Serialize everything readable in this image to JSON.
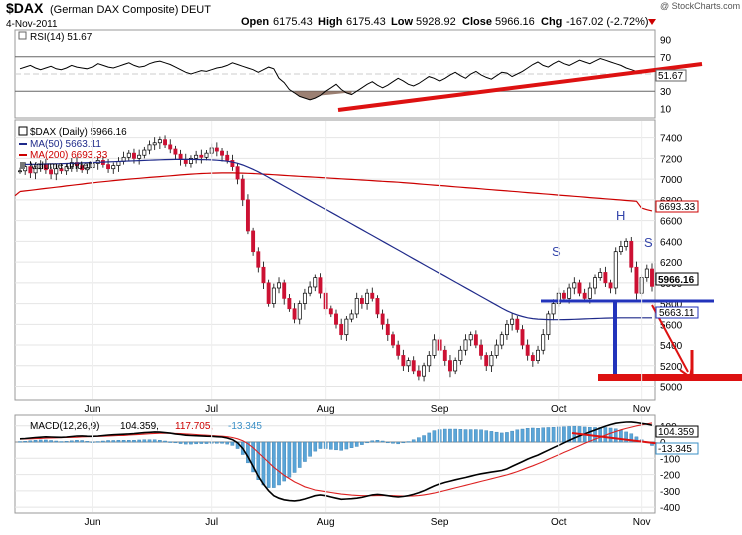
{
  "header": {
    "symbol": "$DAX",
    "name": "(German DAX Composite)",
    "exchange": "DEUT",
    "date": "4-Nov-2011",
    "open_label": "Open",
    "open": "6175.43",
    "high_label": "High",
    "high": "6175.43",
    "low_label": "Low",
    "low": "5928.92",
    "close_label": "Close",
    "close": "5966.16",
    "chg_label": "Chg",
    "chg": "-167.02 (-2.72%)",
    "watermark": "@ StockCharts.com"
  },
  "rsi": {
    "legend": "RSI(14) 51.67",
    "last_value": "51.67",
    "ticks": [
      90,
      70,
      50,
      30,
      10
    ],
    "ylim": [
      0,
      100
    ],
    "values": [
      56,
      58,
      60,
      57,
      55,
      57,
      59,
      56,
      55,
      57,
      60,
      58,
      57,
      56,
      58,
      62,
      60,
      58,
      57,
      59,
      61,
      63,
      60,
      58,
      59,
      62,
      64,
      65,
      63,
      61,
      58,
      55,
      52,
      50,
      52,
      54,
      53,
      55,
      57,
      58,
      60,
      63,
      61,
      59,
      57,
      55,
      52,
      55,
      58,
      56,
      45,
      40,
      32,
      28,
      24,
      22,
      20,
      22,
      25,
      30,
      34,
      38,
      32,
      28,
      26,
      30,
      34,
      38,
      41,
      37,
      34,
      37,
      41,
      45,
      42,
      38,
      36,
      39,
      43,
      47,
      45,
      42,
      45,
      49,
      52,
      48,
      45,
      50,
      53,
      49,
      46,
      44,
      48,
      52,
      51,
      47,
      50,
      53,
      57,
      61,
      64,
      60,
      58,
      62,
      65,
      62,
      60,
      63,
      66,
      64,
      62,
      65,
      68,
      66,
      64,
      62,
      60,
      57,
      55,
      53,
      51.67
    ]
  },
  "price": {
    "legend_symbol": "$DAX (Daily) 5966.16",
    "legend_ma50": "MA(50) 5663.11",
    "legend_ma200": "MA(200) 6693.33",
    "legend_volume": "Volume undef",
    "ticks": [
      7400,
      7200,
      7000,
      6800,
      6600,
      6400,
      6200,
      6000,
      5800,
      5600,
      5400,
      5200,
      5000
    ],
    "ylim": [
      4880,
      7560
    ],
    "label_close": "5966.16",
    "label_ma200": "6693.33",
    "label_ma50": "5663.11",
    "closes": [
      7080,
      7120,
      7060,
      7100,
      7140,
      7090,
      7050,
      7100,
      7080,
      7120,
      7160,
      7130,
      7090,
      7110,
      7150,
      7180,
      7140,
      7100,
      7130,
      7170,
      7210,
      7250,
      7200,
      7230,
      7280,
      7330,
      7350,
      7380,
      7330,
      7290,
      7240,
      7190,
      7150,
      7200,
      7230,
      7210,
      7250,
      7300,
      7270,
      7230,
      7180,
      7120,
      7000,
      6800,
      6500,
      6300,
      6150,
      6000,
      5800,
      5950,
      6000,
      5850,
      5750,
      5650,
      5800,
      5900,
      5960,
      6050,
      5900,
      5750,
      5700,
      5600,
      5500,
      5650,
      5700,
      5850,
      5800,
      5900,
      5850,
      5700,
      5600,
      5500,
      5400,
      5300,
      5200,
      5250,
      5150,
      5100,
      5200,
      5300,
      5450,
      5350,
      5250,
      5150,
      5250,
      5350,
      5450,
      5500,
      5400,
      5300,
      5200,
      5300,
      5400,
      5500,
      5600,
      5650,
      5550,
      5400,
      5300,
      5250,
      5350,
      5500,
      5700,
      5800,
      5900,
      5850,
      5950,
      6000,
      5900,
      5850,
      5950,
      6050,
      6100,
      6000,
      5950,
      6300,
      6350,
      6400,
      6150,
      5900,
      6050,
      6133,
      5966.16
    ],
    "ma50": [
      7140,
      7141,
      7142,
      7143,
      7144,
      7145,
      7146,
      7147,
      7148,
      7150,
      7152,
      7154,
      7156,
      7158,
      7160,
      7162,
      7164,
      7166,
      7168,
      7170,
      7172,
      7174,
      7176,
      7178,
      7180,
      7182,
      7184,
      7186,
      7188,
      7189,
      7190,
      7190,
      7190,
      7190,
      7189,
      7188,
      7187,
      7185,
      7182,
      7178,
      7172,
      7164,
      7152,
      7136,
      7116,
      7094,
      7070,
      7044,
      7016,
      6988,
      6960,
      6932,
      6904,
      6876,
      6848,
      6820,
      6792,
      6764,
      6736,
      6708,
      6680,
      6652,
      6624,
      6596,
      6568,
      6540,
      6512,
      6484,
      6456,
      6428,
      6400,
      6372,
      6344,
      6316,
      6288,
      6260,
      6232,
      6204,
      6176,
      6148,
      6120,
      6092,
      6064,
      6036,
      6008,
      5980,
      5952,
      5924,
      5896,
      5868,
      5840,
      5812,
      5784,
      5756,
      5730,
      5708,
      5690,
      5675,
      5663,
      5655,
      5650,
      5647,
      5645,
      5644,
      5644,
      5645,
      5646,
      5648,
      5650,
      5652,
      5654,
      5656,
      5658,
      5660,
      5661,
      5662,
      5663,
      5663,
      5663,
      5663,
      5663,
      5663,
      5663.11
    ],
    "ma200": [
      6880,
      6886,
      6892,
      6898,
      6904,
      6910,
      6916,
      6922,
      6928,
      6934,
      6940,
      6946,
      6952,
      6958,
      6964,
      6970,
      6975,
      6980,
      6985,
      6990,
      6995,
      7000,
      7004,
      7008,
      7012,
      7016,
      7020,
      7024,
      7028,
      7032,
      7036,
      7040,
      7044,
      7048,
      7051,
      7054,
      7056,
      7058,
      7059,
      7060,
      7060,
      7060,
      7059,
      7058,
      7056,
      7054,
      7051,
      7048,
      7045,
      7042,
      7039,
      7036,
      7033,
      7030,
      7027,
      7024,
      7021,
      7018,
      7015,
      7012,
      7009,
      7006,
      7003,
      7000,
      6997,
      6994,
      6991,
      6988,
      6985,
      6982,
      6979,
      6976,
      6973,
      6970,
      6966,
      6962,
      6958,
      6954,
      6950,
      6946,
      6942,
      6938,
      6934,
      6930,
      6926,
      6922,
      6918,
      6914,
      6910,
      6906,
      6902,
      6898,
      6894,
      6890,
      6886,
      6882,
      6878,
      6874,
      6870,
      6866,
      6862,
      6858,
      6854,
      6850,
      6846,
      6842,
      6838,
      6834,
      6830,
      6826,
      6822,
      6818,
      6814,
      6810,
      6806,
      6802,
      6798,
      6794,
      6790,
      6786,
      6720,
      6705,
      6693.33
    ],
    "pattern_labels": {
      "left_shoulder": "S",
      "head": "H",
      "right_shoulder": "S"
    }
  },
  "macd": {
    "legend_name": "MACD(12,26,9)",
    "legend_macd": "104.359,",
    "legend_signal": "117.705,",
    "legend_hist": "-13.345",
    "label_macd": "104.359",
    "label_hist": "-13.345",
    "ticks": [
      100,
      0,
      -100,
      -200,
      -300,
      -400
    ],
    "ylim": [
      -430,
      160
    ],
    "macd": [
      20,
      22,
      25,
      28,
      30,
      32,
      31,
      30,
      29,
      31,
      34,
      37,
      38,
      36,
      35,
      37,
      40,
      43,
      45,
      47,
      48,
      50,
      52,
      55,
      58,
      60,
      62,
      61,
      58,
      55,
      50,
      46,
      42,
      40,
      39,
      38,
      36,
      35,
      33,
      31,
      25,
      15,
      -5,
      -40,
      -90,
      -150,
      -210,
      -260,
      -300,
      -330,
      -345,
      -355,
      -360,
      -362,
      -358,
      -350,
      -340,
      -330,
      -325,
      -330,
      -338,
      -345,
      -352,
      -350,
      -348,
      -345,
      -340,
      -332,
      -325,
      -322,
      -325,
      -330,
      -335,
      -338,
      -335,
      -330,
      -322,
      -312,
      -300,
      -285,
      -270,
      -258,
      -248,
      -240,
      -232,
      -225,
      -218,
      -210,
      -202,
      -195,
      -190,
      -185,
      -180,
      -175,
      -165,
      -150,
      -135,
      -120,
      -105,
      -92,
      -80,
      -65,
      -50,
      -35,
      -20,
      -5,
      10,
      25,
      38,
      50,
      62,
      74,
      86,
      98,
      108,
      116,
      120,
      123,
      124,
      120,
      115,
      110,
      104.359
    ],
    "signal": [
      18,
      19,
      20,
      21,
      22,
      24,
      25,
      26,
      27,
      28,
      29,
      30,
      32,
      33,
      34,
      35,
      36,
      37,
      39,
      40,
      41,
      43,
      45,
      47,
      49,
      51,
      53,
      54,
      54,
      54,
      53,
      52,
      50,
      48,
      46,
      44,
      42,
      40,
      38,
      36,
      33,
      28,
      20,
      8,
      -10,
      -35,
      -65,
      -95,
      -125,
      -155,
      -180,
      -205,
      -225,
      -245,
      -260,
      -275,
      -285,
      -295,
      -300,
      -305,
      -310,
      -315,
      -320,
      -323,
      -326,
      -328,
      -330,
      -330,
      -330,
      -329,
      -329,
      -329,
      -330,
      -331,
      -332,
      -332,
      -331,
      -329,
      -325,
      -320,
      -314,
      -306,
      -298,
      -290,
      -282,
      -274,
      -266,
      -258,
      -250,
      -242,
      -234,
      -226,
      -218,
      -210,
      -202,
      -192,
      -182,
      -170,
      -158,
      -146,
      -133,
      -120,
      -106,
      -92,
      -78,
      -64,
      -50,
      -36,
      -22,
      -8,
      5,
      18,
      30,
      42,
      54,
      65,
      75,
      84,
      92,
      100,
      106,
      112,
      117.705
    ],
    "dates": [
      "Jun",
      "Jul",
      "Aug",
      "Sep",
      "Oct",
      "Nov"
    ],
    "date_index": [
      14,
      37,
      59,
      81,
      104,
      120
    ]
  }
}
